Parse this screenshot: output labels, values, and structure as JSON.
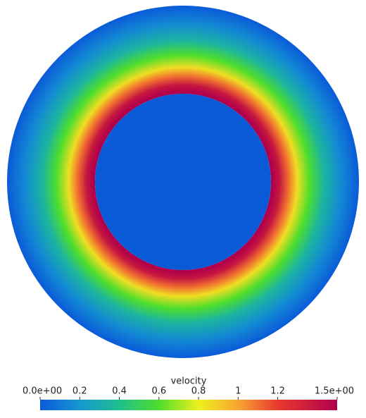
{
  "chart_data": {
    "type": "annulus",
    "title": "velocity",
    "radius_fraction": [
      0.5,
      0.51,
      0.55,
      0.6,
      0.65,
      0.72,
      0.8,
      0.9,
      1.0
    ],
    "values": [
      0,
      1.5,
      1.38,
      1.1,
      0.85,
      0.6,
      0.35,
      0.15,
      0.0
    ],
    "clim": [
      0,
      1.5
    ],
    "cticks": [
      {
        "value": 0,
        "label": "0.0e+00"
      },
      0.2,
      0.4,
      0.6,
      0.8,
      1,
      1.2,
      {
        "value": 1.5,
        "label": "1.5e+00"
      }
    ],
    "colormap": [
      [
        0,
        "#0a5ad8"
      ],
      [
        0.2,
        "#1698d2"
      ],
      [
        0.4,
        "#1ebf8e"
      ],
      [
        0.6,
        "#4ede2c"
      ],
      [
        0.8,
        "#eef11e"
      ],
      [
        1.0,
        "#f7a532"
      ],
      [
        1.2,
        "#e83a2e"
      ],
      [
        1.5,
        "#b0004c"
      ]
    ]
  }
}
